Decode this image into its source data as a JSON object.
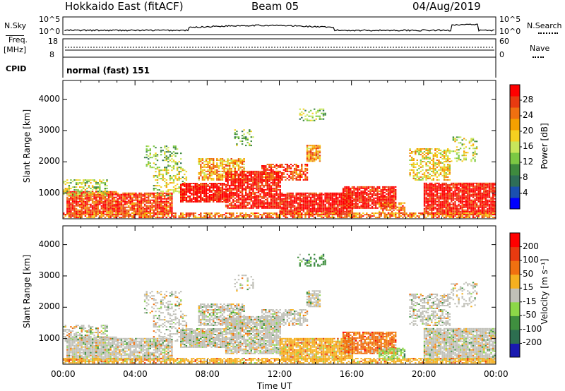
{
  "header": {
    "title": "Hokkaido East (fitACF)",
    "beam": "Beam 05",
    "date": "04/Aug/2019"
  },
  "strip": {
    "nsky_label": "N.Sky",
    "nsearch_label": "N.Search",
    "freq_label": "Freq.",
    "freq_unit": "[MHz]",
    "nave_label": "Nave",
    "cpid_label": "CPID",
    "cpid_value": "normal (fast) 151",
    "nsky_ticks": [
      "10^5",
      "10^0"
    ],
    "nsearch_ticks": [
      "10^5",
      "10^0"
    ],
    "freq_ticks": [
      "18",
      "8"
    ],
    "nave_ticks": [
      "60",
      "0"
    ]
  },
  "chart_data": [
    {
      "type": "heatmap",
      "name": "power",
      "ylabel": "Slant Range [km]",
      "ylim": [
        180,
        4600
      ],
      "y_ticks": [
        1000,
        2000,
        3000,
        4000
      ],
      "colorbar_label": "Power [dB]",
      "colorbar_ticks": [
        "28",
        "24",
        "20",
        "16",
        "12",
        "8",
        "4"
      ],
      "colors": [
        "#0000ff",
        "#1a4fb0",
        "#2e6e58",
        "#3e8a3e",
        "#7cc843",
        "#c8e65a",
        "#f5d020",
        "#f5a000",
        "#f07010",
        "#e83a10",
        "#ff0000"
      ]
    },
    {
      "type": "heatmap",
      "name": "velocity",
      "ylabel": "Slant Range [km]",
      "ylim": [
        180,
        4600
      ],
      "y_ticks": [
        1000,
        2000,
        3000,
        4000
      ],
      "xlabel": "Time UT",
      "x_ticks": [
        "00:00",
        "04:00",
        "08:00",
        "12:00",
        "16:00",
        "20:00",
        "00:00"
      ],
      "colorbar_label": "Velocity [m s⁻¹]",
      "colorbar_ticks": [
        "200",
        "100",
        "50",
        "15",
        "-15",
        "-50",
        "-100",
        "-200"
      ],
      "colors": [
        "#1a1ab0",
        "#2d6e50",
        "#3f8f3f",
        "#8cd848",
        "#c0c0b8",
        "#f5b020",
        "#f07010",
        "#e83a10",
        "#ff0000"
      ]
    }
  ]
}
